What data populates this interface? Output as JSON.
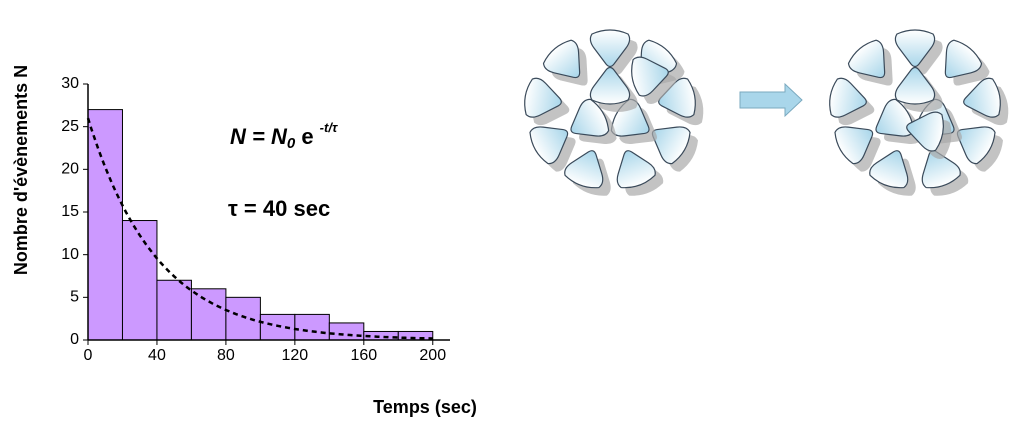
{
  "chart_data": {
    "type": "histogram",
    "bins": [
      0,
      20,
      40,
      60,
      80,
      100,
      120,
      140,
      160,
      180,
      200
    ],
    "counts": [
      27,
      14,
      7,
      6,
      5,
      3,
      3,
      2,
      1,
      1
    ],
    "color": "#cc99ff",
    "xlim": [
      0,
      210
    ],
    "ylim": [
      0,
      30
    ],
    "xticks": [
      0,
      40,
      80,
      120,
      160,
      200
    ],
    "yticks": [
      0,
      5,
      10,
      15,
      20,
      25,
      30
    ],
    "xlabel": "Temps (sec)",
    "ylabel": "Nombre d'évènements N",
    "fit": {
      "N0": 26,
      "tau": 40
    },
    "equation": [
      "N = N",
      "0",
      " e ",
      "-t/τ"
    ],
    "annotation": "τ = 40 sec"
  }
}
